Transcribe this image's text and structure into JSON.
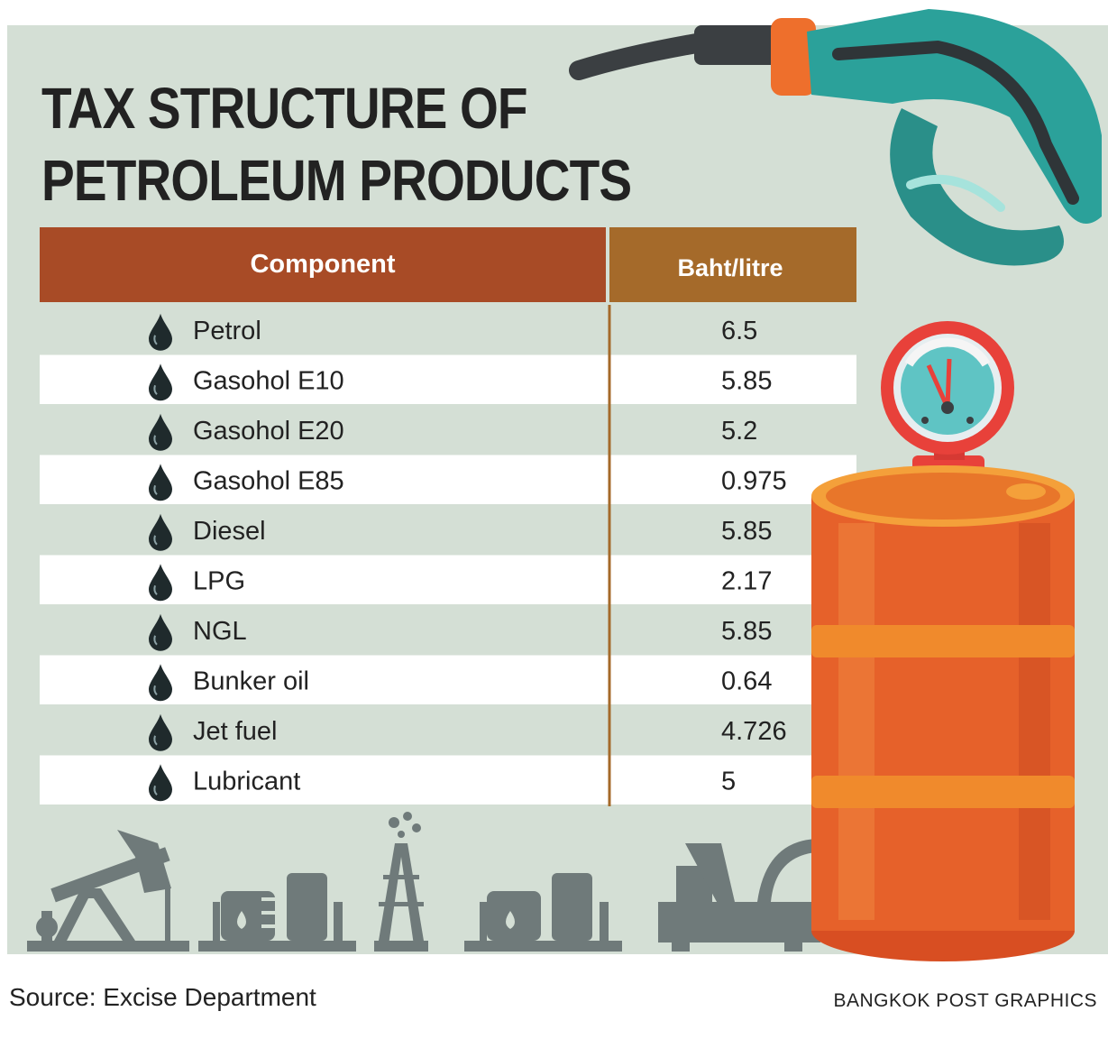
{
  "title_line1": "TAX STRUCTURE OF",
  "title_line2": "PETROLEUM PRODUCTS",
  "source": "Source: Excise Department",
  "credit": "BANGKOK POST GRAPHICS",
  "colors": {
    "background": "#d4dfd5",
    "header_component": "#a84b26",
    "header_value": "#a56a2a",
    "row_alt": "#ffffff",
    "divider": "#a56a2a",
    "drop": "#1f2a2c",
    "barrel": "#e6612a",
    "barrel_band": "#f08a2c",
    "nozzle": "#2ba19a",
    "skyline": "#6f7a7a"
  },
  "icons": [
    "oil-drop-icon",
    "fuel-nozzle-icon",
    "pressure-gauge-icon",
    "oil-barrel-icon",
    "pumpjack-icon",
    "storage-tank-icon",
    "oil-derrick-icon",
    "offshore-rig-icon"
  ],
  "chart_data": {
    "type": "table",
    "columns": [
      "Component",
      "Baht/litre"
    ],
    "rows": [
      {
        "component": "Petrol",
        "value": "6.5"
      },
      {
        "component": "Gasohol E10",
        "value": "5.85"
      },
      {
        "component": "Gasohol E20",
        "value": "5.2"
      },
      {
        "component": "Gasohol E85",
        "value": "0.975"
      },
      {
        "component": "Diesel",
        "value": "5.85"
      },
      {
        "component": "LPG",
        "value": "2.17"
      },
      {
        "component": "NGL",
        "value": "5.85"
      },
      {
        "component": "Bunker oil",
        "value": "0.64"
      },
      {
        "component": "Jet fuel",
        "value": "4.726"
      },
      {
        "component": "Lubricant",
        "value": "5"
      }
    ]
  }
}
